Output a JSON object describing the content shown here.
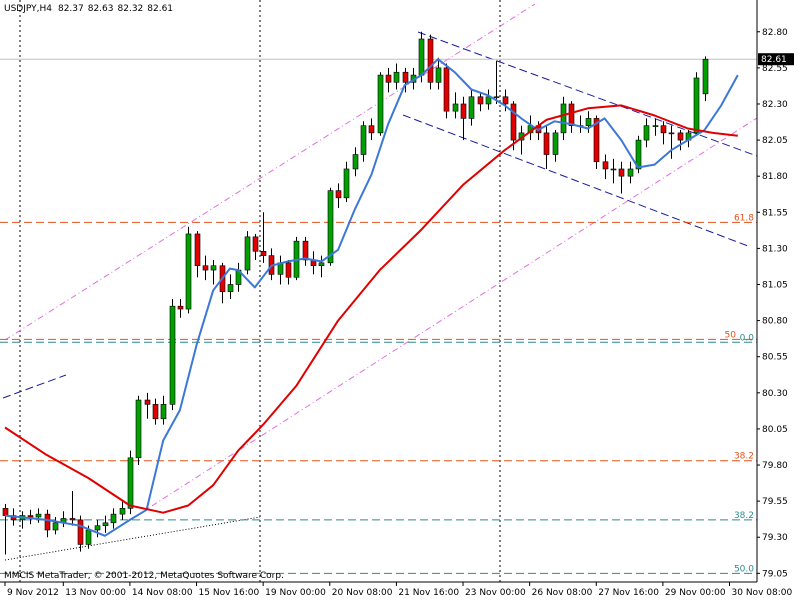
{
  "chart_data": {
    "type": "candlestick",
    "title": "USDJPY,H4",
    "footer": "MMCIS MetaTrader, © 2001-2012, MetaQuotes Software Corp.",
    "bull_color": "#00a000",
    "bear_color": "#e00000",
    "ylim": [
      78.99,
      83.02
    ],
    "xlim": [
      -0.6,
      90.3
    ],
    "yticks": [
      {
        "value": 82.8,
        "label": "82.80"
      },
      {
        "value": 82.55,
        "label": "82.55"
      },
      {
        "value": 82.3,
        "label": "82.30"
      },
      {
        "value": 82.05,
        "label": "82.05"
      },
      {
        "value": 81.8,
        "label": "81.80"
      },
      {
        "value": 81.55,
        "label": "81.55"
      },
      {
        "value": 81.3,
        "label": "81.30"
      },
      {
        "value": 81.05,
        "label": "81.05"
      },
      {
        "value": 80.8,
        "label": "80.80"
      },
      {
        "value": 80.55,
        "label": "80.55"
      },
      {
        "value": 80.3,
        "label": "80.30"
      },
      {
        "value": 80.05,
        "label": "80.05"
      },
      {
        "value": 79.8,
        "label": "79.80"
      },
      {
        "value": 79.55,
        "label": "79.55"
      },
      {
        "value": 79.3,
        "label": "79.30"
      },
      {
        "value": 79.05,
        "label": "79.05"
      }
    ],
    "xticks": [
      {
        "value": 0,
        "label": "9 Nov 2012"
      },
      {
        "value": 7,
        "label": "13 Nov 00:00"
      },
      {
        "value": 15,
        "label": "14 Nov 08:00"
      },
      {
        "value": 23,
        "label": "15 Nov 16:00"
      },
      {
        "value": 31,
        "label": "19 Nov 00:00"
      },
      {
        "value": 39,
        "label": "20 Nov 08:00"
      },
      {
        "value": 47,
        "label": "21 Nov 16:00"
      },
      {
        "value": 55,
        "label": "23 Nov 00:00"
      },
      {
        "value": 63,
        "label": "26 Nov 08:00"
      },
      {
        "value": 71,
        "label": "27 Nov 16:00"
      },
      {
        "value": 79,
        "label": "29 Nov 00:00"
      },
      {
        "value": 87,
        "label": "30 Nov 08:00"
      }
    ],
    "open": [
      79.5,
      79.45,
      79.42,
      79.45,
      79.44,
      79.46,
      79.35,
      79.4,
      79.43,
      79.42,
      79.25,
      79.35,
      79.38,
      79.4,
      79.46,
      79.5,
      79.85,
      80.25,
      80.22,
      80.12,
      80.22,
      80.9,
      80.88,
      81.4,
      81.18,
      81.15,
      81.18,
      81.0,
      81.05,
      81.15,
      81.38,
      81.28,
      81.25,
      81.12,
      81.2,
      81.1,
      81.35,
      81.22,
      81.18,
      81.2,
      81.7,
      81.65,
      81.85,
      81.95,
      82.15,
      82.1,
      82.5,
      82.45,
      82.52,
      82.45,
      82.5,
      82.75,
      82.45,
      82.55,
      82.25,
      82.3,
      82.2,
      82.35,
      82.3,
      82.35,
      82.35,
      82.3,
      82.05,
      82.1,
      82.15,
      82.1,
      81.95,
      82.1,
      82.3,
      82.15,
      82.15,
      82.2,
      81.9,
      81.85,
      81.85,
      81.8,
      81.85,
      82.05,
      82.15,
      82.15,
      82.1,
      82.1,
      82.05,
      82.1,
      82.37
    ],
    "high": [
      79.53,
      79.5,
      79.48,
      79.49,
      79.5,
      79.49,
      79.44,
      79.48,
      79.62,
      79.45,
      79.38,
      79.42,
      79.45,
      79.5,
      79.55,
      79.9,
      80.28,
      80.3,
      80.26,
      80.28,
      80.95,
      80.95,
      81.45,
      81.42,
      81.25,
      81.22,
      81.2,
      81.12,
      81.2,
      81.42,
      81.4,
      81.55,
      81.3,
      81.25,
      81.22,
      81.38,
      81.38,
      81.28,
      81.25,
      81.72,
      81.75,
      81.9,
      82.0,
      82.18,
      82.2,
      82.52,
      82.55,
      82.58,
      82.55,
      82.55,
      82.8,
      82.78,
      82.62,
      82.58,
      82.38,
      82.35,
      82.4,
      82.38,
      82.4,
      82.6,
      82.4,
      82.32,
      82.15,
      82.22,
      82.18,
      82.15,
      82.12,
      82.35,
      82.32,
      82.22,
      82.25,
      82.22,
      81.95,
      81.92,
      81.9,
      81.9,
      82.08,
      82.2,
      82.2,
      82.18,
      82.15,
      82.12,
      82.12,
      82.52,
      82.63
    ],
    "low": [
      79.18,
      79.38,
      79.36,
      79.39,
      79.4,
      79.3,
      79.32,
      79.37,
      79.38,
      79.2,
      79.22,
      79.3,
      79.33,
      79.36,
      79.42,
      79.46,
      79.8,
      80.12,
      80.08,
      80.08,
      80.18,
      80.82,
      80.85,
      81.1,
      81.08,
      81.05,
      80.92,
      80.95,
      81.0,
      81.12,
      81.22,
      81.2,
      81.08,
      81.05,
      81.05,
      81.08,
      81.18,
      81.12,
      81.1,
      81.18,
      81.58,
      81.62,
      81.8,
      81.9,
      82.05,
      82.08,
      82.38,
      82.4,
      82.38,
      82.4,
      82.45,
      82.4,
      82.4,
      82.2,
      82.2,
      82.05,
      82.15,
      82.25,
      82.26,
      82.3,
      82.25,
      81.98,
      81.95,
      82.05,
      82.05,
      81.85,
      81.9,
      82.05,
      82.1,
      82.1,
      82.1,
      81.85,
      81.78,
      81.75,
      81.68,
      81.75,
      81.82,
      82.0,
      82.08,
      82.02,
      81.92,
      81.98,
      82.0,
      82.08,
      82.32
    ],
    "close": [
      79.45,
      79.42,
      79.45,
      79.44,
      79.46,
      79.35,
      79.4,
      79.43,
      79.42,
      79.25,
      79.35,
      79.38,
      79.4,
      79.46,
      79.5,
      79.85,
      80.25,
      80.22,
      80.12,
      80.22,
      80.9,
      80.88,
      81.4,
      81.18,
      81.15,
      81.18,
      81.0,
      81.05,
      81.15,
      81.38,
      81.28,
      81.25,
      81.12,
      81.2,
      81.1,
      81.35,
      81.22,
      81.18,
      81.2,
      81.7,
      81.65,
      81.85,
      81.95,
      82.15,
      82.1,
      82.5,
      82.45,
      82.52,
      82.45,
      82.5,
      82.75,
      82.45,
      82.55,
      82.25,
      82.3,
      82.2,
      82.35,
      82.3,
      82.35,
      82.35,
      82.3,
      82.05,
      82.1,
      82.15,
      82.1,
      81.95,
      82.1,
      82.3,
      82.15,
      82.15,
      82.2,
      81.9,
      81.85,
      81.85,
      81.8,
      81.85,
      82.05,
      82.15,
      82.15,
      82.1,
      82.1,
      82.05,
      82.1,
      82.48,
      82.61
    ],
    "lines": [
      {
        "color": "#3c78d8",
        "x": [
          0,
          5,
          9,
          12,
          15,
          17,
          19,
          21,
          23,
          25,
          27,
          28,
          30,
          32,
          34,
          36,
          38,
          40,
          42,
          44,
          46,
          48,
          50,
          52,
          54,
          56,
          58,
          60,
          62,
          64,
          66,
          68,
          70,
          72,
          74,
          76,
          78,
          80,
          82,
          84,
          86,
          88
        ],
        "values": [
          79.45,
          79.42,
          79.38,
          79.31,
          79.42,
          79.49,
          79.97,
          80.18,
          80.63,
          81.01,
          81.16,
          81.15,
          81.03,
          81.18,
          81.21,
          81.23,
          81.21,
          81.29,
          81.57,
          81.81,
          82.16,
          82.43,
          82.5,
          82.61,
          82.52,
          82.4,
          82.36,
          82.29,
          82.2,
          82.12,
          82.18,
          82.16,
          82.13,
          82.2,
          82.05,
          81.86,
          81.88,
          81.98,
          82.05,
          82.12,
          82.29,
          82.5
        ]
      },
      {
        "color": "#e00000",
        "x": [
          0,
          5,
          10,
          15,
          19,
          22,
          25,
          28,
          31,
          35,
          40,
          45,
          50,
          55,
          60,
          65,
          70,
          74,
          78,
          82,
          85,
          88
        ],
        "values": [
          80.06,
          79.87,
          79.71,
          79.52,
          79.47,
          79.52,
          79.66,
          79.9,
          80.08,
          80.35,
          80.8,
          81.15,
          81.43,
          81.74,
          81.98,
          82.19,
          82.27,
          82.29,
          82.22,
          82.13,
          82.1,
          82.08
        ]
      }
    ],
    "levels": [
      {
        "value": 81.48,
        "label": "61.8",
        "color": "#e0541e"
      },
      {
        "value": 80.67,
        "label": "50",
        "color": "#e0541e"
      },
      {
        "value": 80.65,
        "label": "0.0",
        "color": "#2e8b8b"
      },
      {
        "value": 79.83,
        "label": "38.2",
        "color": "#e0541e"
      },
      {
        "value": 79.42,
        "label": "38.2",
        "color": "#2e8b8b"
      },
      {
        "value": 79.05,
        "label": "50.0",
        "color": "#2e8b8b"
      }
    ]
  }
}
